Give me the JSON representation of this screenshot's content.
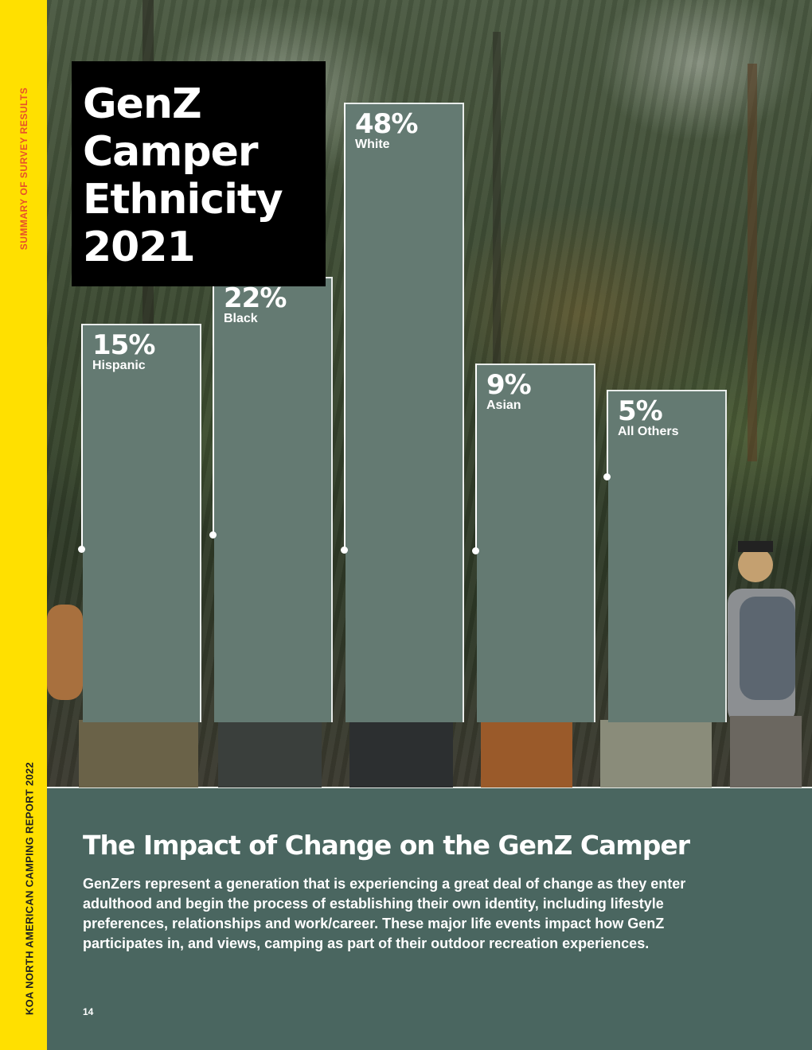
{
  "spine": {
    "top_text": "SUMMARY OF SURVEY RESULTS",
    "bottom_text": "KOA NORTH AMERICAN CAMPING REPORT 2022"
  },
  "title_lines": [
    "GenZ",
    "Camper",
    "Ethnicity",
    "2021"
  ],
  "chart_data": {
    "type": "bar",
    "title": "GenZ Camper Ethnicity 2021",
    "categories": [
      "Hispanic",
      "Black",
      "White",
      "Asian",
      "All Others"
    ],
    "values": [
      15,
      22,
      48,
      9,
      5
    ],
    "value_labels": [
      "15%",
      "22%",
      "48%",
      "9%",
      "5%"
    ],
    "unit": "%",
    "bar_color": "#647a72",
    "ylim": [
      0,
      50
    ],
    "grid": false
  },
  "section": {
    "heading": "The Impact of Change on the GenZ Camper",
    "body": "GenZers represent a generation that is experiencing a great deal of change as they enter adulthood and begin the process of establishing their own identity, including lifestyle preferences, relationships and work/career. These major life events impact how GenZ participates in, and views, camping as part of their outdoor recreation experiences."
  },
  "page_number": "14",
  "colors": {
    "spine": "#ffe000",
    "spine_top_text": "#e8512a",
    "panel": "#4a6660"
  }
}
